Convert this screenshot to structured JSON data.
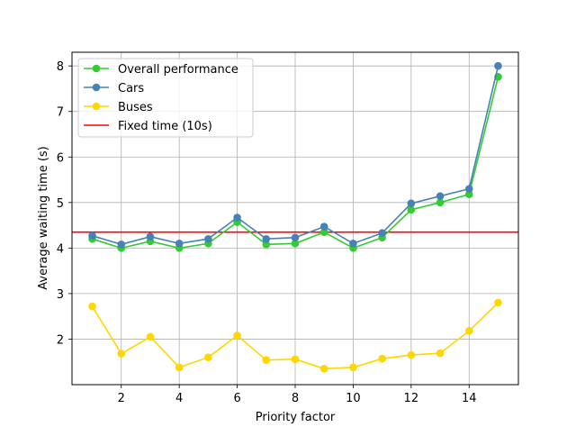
{
  "chart_data": {
    "type": "line",
    "title": "",
    "xlabel": "Priority factor",
    "ylabel": "Average waiting time (s)",
    "x": [
      1,
      2,
      3,
      4,
      5,
      6,
      7,
      8,
      9,
      10,
      11,
      12,
      13,
      14,
      15
    ],
    "xlim": [
      0.3,
      15.7
    ],
    "ylim": [
      1.0,
      8.3
    ],
    "xticks": [
      2,
      4,
      6,
      8,
      10,
      12,
      14
    ],
    "yticks": [
      2,
      3,
      4,
      5,
      6,
      7,
      8
    ],
    "grid": true,
    "legend_position": "top-left",
    "series": [
      {
        "name": "Overall performance",
        "color": "#33cc33",
        "marker": "circle",
        "values": [
          4.2,
          4.0,
          4.15,
          4.0,
          4.1,
          4.57,
          4.08,
          4.1,
          4.35,
          4.0,
          4.23,
          4.84,
          5.0,
          5.18,
          7.76
        ]
      },
      {
        "name": "Cars",
        "color": "#4682b4",
        "marker": "circle",
        "values": [
          4.27,
          4.08,
          4.25,
          4.1,
          4.2,
          4.67,
          4.2,
          4.23,
          4.47,
          4.1,
          4.33,
          4.98,
          5.14,
          5.3,
          8.0
        ]
      },
      {
        "name": "Buses",
        "color": "#ffd700",
        "marker": "circle",
        "values": [
          2.72,
          1.68,
          2.05,
          1.38,
          1.6,
          2.08,
          1.54,
          1.56,
          1.35,
          1.38,
          1.57,
          1.65,
          1.69,
          2.18,
          2.8
        ]
      }
    ],
    "reference_lines": [
      {
        "name": "Fixed time (10s)",
        "color": "#ff0000",
        "y": 4.35
      }
    ]
  }
}
